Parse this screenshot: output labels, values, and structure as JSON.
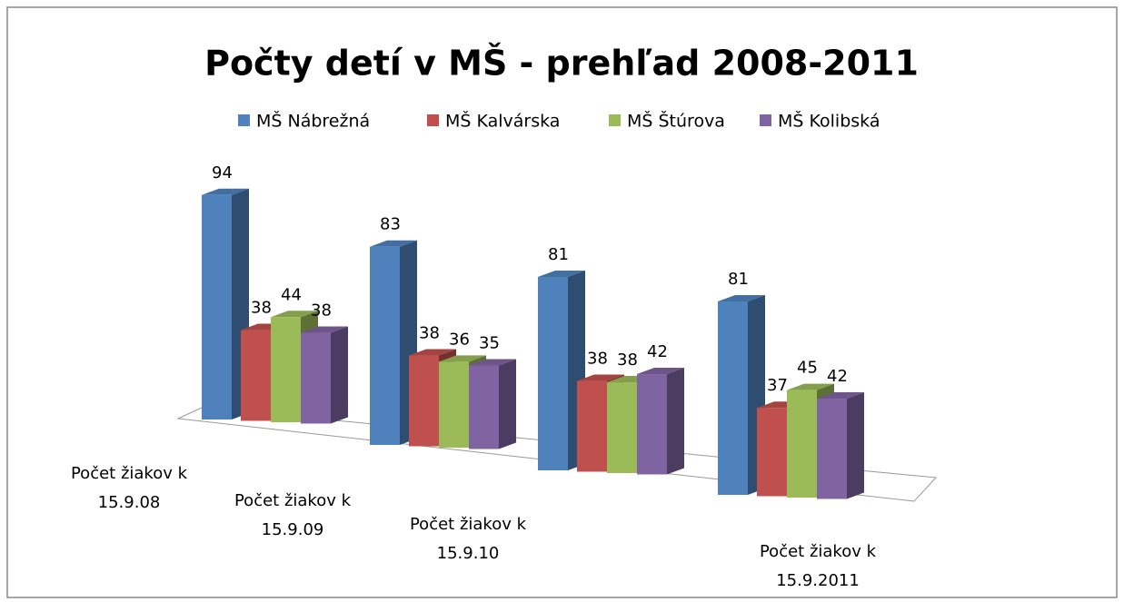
{
  "chart_data": {
    "type": "bar3d",
    "title": "Počty detí v MŠ - prehľad 2008-2011",
    "categories": [
      "Počet žiakov k 15.9.08",
      "Počet žiakov k 15.9.09",
      "Počet žiakov k 15.9.10",
      "Počet žiakov k 15.9.2011"
    ],
    "series": [
      {
        "name": "MŠ Nábrežná",
        "color": "#4f81bd",
        "values": [
          94,
          83,
          81,
          81
        ]
      },
      {
        "name": "MŠ Kalvárska",
        "color": "#c0504d",
        "values": [
          38,
          38,
          38,
          37
        ]
      },
      {
        "name": "MŠ Štúrova",
        "color": "#9bbb59",
        "values": [
          44,
          36,
          38,
          45
        ]
      },
      {
        "name": "MŠ Kolibská",
        "color": "#8064a2",
        "values": [
          38,
          35,
          42,
          42
        ]
      }
    ],
    "legend": "top"
  }
}
